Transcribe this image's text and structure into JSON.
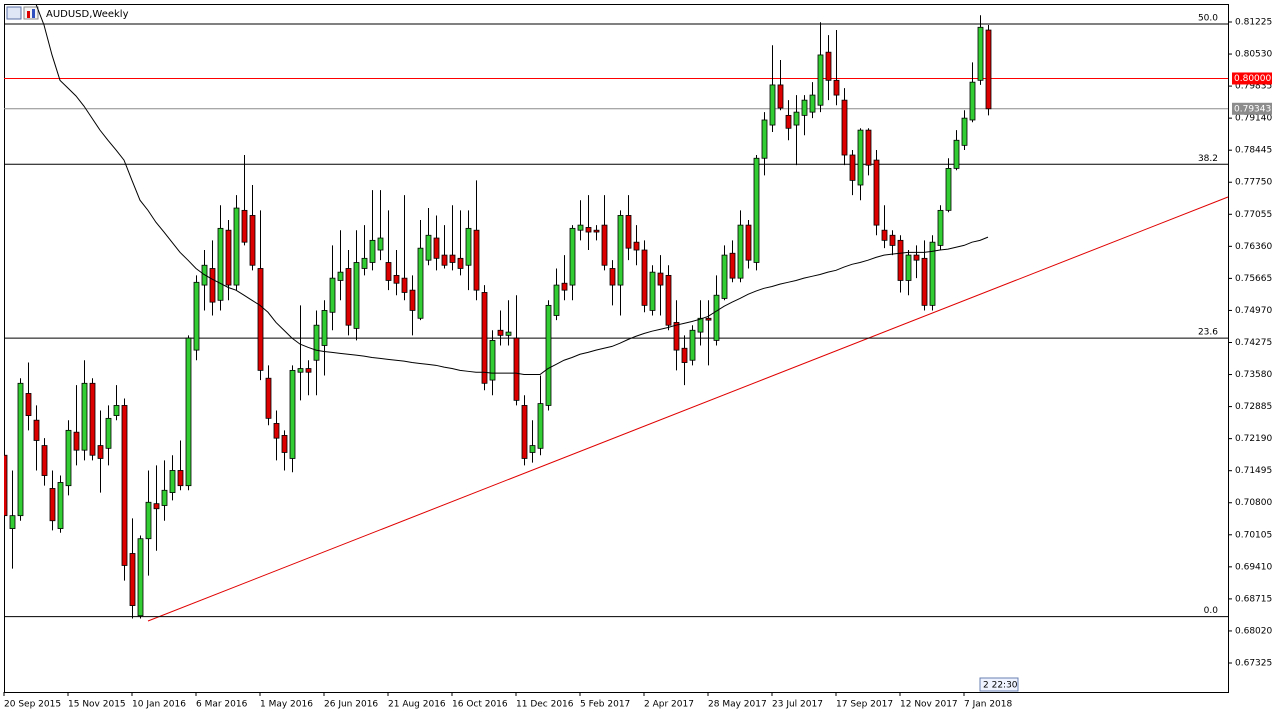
{
  "chart_data": {
    "type": "candlestick",
    "title": "AUDUSD,Weekly",
    "timer": "2 22:30",
    "up_color": "#32cd32",
    "down_color": "#dd0000",
    "categories": [
      "20 Sep 2015",
      null,
      null,
      null,
      null,
      null,
      null,
      null,
      "15 Nov 2015",
      null,
      null,
      null,
      null,
      null,
      null,
      null,
      "10 Jan 2016",
      null,
      null,
      null,
      null,
      null,
      null,
      null,
      "6 Mar 2016",
      null,
      null,
      null,
      null,
      null,
      null,
      null,
      "1 May 2016",
      null,
      null,
      null,
      null,
      null,
      null,
      null,
      "26 Jun 2016",
      null,
      null,
      null,
      null,
      null,
      null,
      null,
      "21 Aug 2016",
      null,
      null,
      null,
      null,
      null,
      null,
      null,
      "16 Oct 2016",
      null,
      null,
      null,
      null,
      null,
      null,
      null,
      "11 Dec 2016",
      null,
      null,
      null,
      null,
      null,
      null,
      null,
      "5 Feb 2017",
      null,
      null,
      null,
      null,
      null,
      null,
      null,
      "2 Apr 2017",
      null,
      null,
      null,
      null,
      null,
      null,
      null,
      "28 May 2017",
      null,
      null,
      null,
      null,
      null,
      null,
      null,
      "23 Jul 2017",
      null,
      null,
      null,
      null,
      null,
      null,
      null,
      "17 Sep 2017",
      null,
      null,
      null,
      null,
      null,
      null,
      null,
      "12 Nov 2017",
      null,
      null,
      null,
      null,
      null,
      null,
      null,
      "7 Jan 2018",
      null,
      null,
      null
    ],
    "open": [
      0.7183,
      0.7024,
      0.7052,
      0.7317,
      0.7259,
      0.7204,
      0.7111,
      0.7024,
      0.7117,
      0.7233,
      0.7194,
      0.7339,
      0.7204,
      0.7198,
      0.7269,
      0.7291,
      0.697,
      0.6835,
      0.7002,
      0.7078,
      0.7074,
      0.7102,
      0.715,
      0.7117,
      0.7411,
      0.7552,
      0.7588,
      0.7519,
      0.7671,
      0.7552,
      0.7714,
      0.7703,
      0.7588,
      0.735,
      0.7252,
      0.7226,
      0.7176,
      0.7363,
      0.7371,
      0.7389,
      0.7421,
      0.7493,
      0.7562,
      0.7588,
      0.7458,
      0.7588,
      0.7601,
      0.7628,
      0.7601,
      0.7573,
      0.7567,
      0.7541,
      0.748,
      0.7606,
      0.7654,
      0.7617,
      0.7617,
      0.761,
      0.7595,
      0.7671,
      0.7536,
      0.7346,
      0.7454,
      0.7443,
      0.7437,
      0.7291,
      0.7189,
      0.7198,
      0.7291,
      0.7486,
      0.7556,
      0.7552,
      0.7671,
      0.7677,
      0.7671,
      0.7682,
      0.7588,
      0.7552,
      0.7703,
      0.7645,
      0.7628,
      0.7497,
      0.7578,
      0.7573,
      0.7471,
      0.7415,
      0.7389,
      0.745,
      0.748,
      0.7432,
      0.7523,
      0.7621,
      0.7567,
      0.7682,
      0.7601,
      0.7827,
      0.7899,
      0.7986,
      0.792,
      0.7899,
      0.792,
      0.7927,
      0.7942,
      0.8057,
      0.7996,
      0.7953,
      0.7834,
      0.7769,
      0.7888,
      0.7823,
      0.7671,
      0.766,
      0.7649,
      0.7562,
      0.7617,
      0.761,
      0.7508,
      0.7638,
      0.7714,
      0.7805,
      0.7855,
      0.791,
      0.7996,
      0.8105
    ],
    "high": [
      0.719,
      0.715,
      0.735,
      0.7384,
      0.7291,
      0.722,
      0.715,
      0.7139,
      0.7259,
      0.7335,
      0.7389,
      0.735,
      0.728,
      0.7291,
      0.7335,
      0.7306,
      0.7046,
      0.7009,
      0.715,
      0.7161,
      0.7172,
      0.7183,
      0.7215,
      0.7443,
      0.7573,
      0.7628,
      0.7649,
      0.7725,
      0.7693,
      0.7747,
      0.7834,
      0.7769,
      0.7714,
      0.7378,
      0.728,
      0.7237,
      0.7378,
      0.7508,
      0.7389,
      0.7497,
      0.7519,
      0.7638,
      0.7671,
      0.7628,
      0.7671,
      0.7682,
      0.7758,
      0.7758,
      0.7714,
      0.7628,
      0.7747,
      0.7573,
      0.7693,
      0.7719,
      0.7703,
      0.7682,
      0.7725,
      0.7714,
      0.7714,
      0.7779,
      0.7552,
      0.7454,
      0.7497,
      0.7519,
      0.753,
      0.7313,
      0.7259,
      0.7356,
      0.7519,
      0.7588,
      0.7617,
      0.7682,
      0.7736,
      0.7747,
      0.7682,
      0.7747,
      0.7606,
      0.7714,
      0.7747,
      0.7682,
      0.7649,
      0.7595,
      0.7617,
      0.7595,
      0.7519,
      0.7443,
      0.7465,
      0.7519,
      0.7519,
      0.7573,
      0.7638,
      0.7649,
      0.7714,
      0.7693,
      0.7834,
      0.7927,
      0.8072,
      0.804,
      0.7953,
      0.7964,
      0.7964,
      0.7992,
      0.8122,
      0.8094,
      0.8105,
      0.7979,
      0.7845,
      0.7892,
      0.7892,
      0.7845,
      0.7725,
      0.7671,
      0.766,
      0.7628,
      0.7638,
      0.7649,
      0.766,
      0.7725,
      0.7827,
      0.7888,
      0.7931,
      0.8035,
      0.8137,
      0.8116
    ],
    "low": [
      0.6937,
      0.6937,
      0.7041,
      0.7237,
      0.715,
      0.7117,
      0.702,
      0.7015,
      0.7096,
      0.7161,
      0.7172,
      0.7172,
      0.7102,
      0.7161,
      0.7259,
      0.6911,
      0.6829,
      0.6829,
      0.6922,
      0.6976,
      0.7041,
      0.7085,
      0.7107,
      0.7107,
      0.7389,
      0.7497,
      0.7486,
      0.7497,
      0.7519,
      0.7541,
      0.7638,
      0.7584,
      0.7346,
      0.7248,
      0.7172,
      0.715,
      0.7146,
      0.7302,
      0.7313,
      0.7313,
      0.7356,
      0.7454,
      0.7519,
      0.7443,
      0.7432,
      0.7573,
      0.7584,
      0.7606,
      0.7541,
      0.753,
      0.7519,
      0.7443,
      0.7476,
      0.7595,
      0.7584,
      0.7588,
      0.7584,
      0.7573,
      0.7541,
      0.7519,
      0.7324,
      0.7313,
      0.7421,
      0.7421,
      0.7291,
      0.7161,
      0.7167,
      0.7183,
      0.728,
      0.7476,
      0.7519,
      0.7519,
      0.7649,
      0.7628,
      0.7649,
      0.7584,
      0.7508,
      0.7486,
      0.7606,
      0.7595,
      0.7493,
      0.7486,
      0.7486,
      0.7454,
      0.7367,
      0.7335,
      0.7378,
      0.7421,
      0.7378,
      0.7421,
      0.7519,
      0.7558,
      0.7558,
      0.7588,
      0.7584,
      0.779,
      0.7884,
      0.7931,
      0.7866,
      0.7812,
      0.7877,
      0.7914,
      0.7927,
      0.7953,
      0.7942,
      0.7812,
      0.7747,
      0.7736,
      0.779,
      0.766,
      0.7632,
      0.7617,
      0.7536,
      0.753,
      0.7567,
      0.7497,
      0.7497,
      0.7628,
      0.771,
      0.7801,
      0.7845,
      0.7905,
      0.7986,
      0.792
    ],
    "close": [
      0.7052,
      0.7052,
      0.7339,
      0.7269,
      0.7215,
      0.7139,
      0.7041,
      0.7124,
      0.7237,
      0.7194,
      0.7339,
      0.7183,
      0.7176,
      0.7263,
      0.7291,
      0.6944,
      0.6857,
      0.7002,
      0.7081,
      0.7067,
      0.7107,
      0.715,
      0.7117,
      0.7437,
      0.7558,
      0.7595,
      0.7515,
      0.7675,
      0.7552,
      0.7719,
      0.7645,
      0.7595,
      0.7367,
      0.7263,
      0.722,
      0.7189,
      0.7367,
      0.7371,
      0.7363,
      0.7465,
      0.7497,
      0.7567,
      0.758,
      0.7465,
      0.7601,
      0.761,
      0.7649,
      0.7654,
      0.7562,
      0.7556,
      0.7536,
      0.7497,
      0.7632,
      0.766,
      0.761,
      0.7595,
      0.7601,
      0.7588,
      0.7675,
      0.7541,
      0.7339,
      0.7432,
      0.7443,
      0.745,
      0.7302,
      0.7176,
      0.7204,
      0.7295,
      0.7508,
      0.7552,
      0.7541,
      0.7675,
      0.7682,
      0.7667,
      0.7667,
      0.7595,
      0.7552,
      0.7703,
      0.7632,
      0.7628,
      0.7508,
      0.758,
      0.7552,
      0.7465,
      0.7411,
      0.7384,
      0.7454,
      0.748,
      0.7476,
      0.753,
      0.7617,
      0.7567,
      0.7682,
      0.7606,
      0.7827,
      0.791,
      0.7986,
      0.7936,
      0.7892,
      0.7927,
      0.7953,
      0.7964,
      0.8051,
      0.7996,
      0.7964,
      0.7834,
      0.7779,
      0.7888,
      0.7812,
      0.7682,
      0.7649,
      0.7638,
      0.7562,
      0.7617,
      0.7606,
      0.7508,
      0.7645,
      0.7714,
      0.7805,
      0.7866,
      0.7914,
      0.7992,
      0.8111,
      0.79343
    ],
    "ma": {
      "color": "#000000",
      "values": [
        null,
        null,
        null,
        null,
        0.8161,
        0.8116,
        0.8051,
        0.7996,
        0.7979,
        0.7962,
        0.794,
        0.7914,
        0.7888,
        0.7866,
        0.7845,
        0.7823,
        0.7779,
        0.7736,
        0.7714,
        0.7688,
        0.7667,
        0.7645,
        0.7623,
        0.7606,
        0.7588,
        0.7575,
        0.7565,
        0.7556,
        0.7547,
        0.7541,
        0.753,
        0.7519,
        0.7508,
        0.7493,
        0.7471,
        0.7454,
        0.7437,
        0.7424,
        0.7417,
        0.7411,
        0.7408,
        0.7406,
        0.7404,
        0.7402,
        0.74,
        0.7398,
        0.7395,
        0.7393,
        0.7391,
        0.7389,
        0.7387,
        0.7384,
        0.7382,
        0.738,
        0.7378,
        0.7374,
        0.7371,
        0.7367,
        0.7365,
        0.7363,
        0.7363,
        0.7361,
        0.7361,
        0.7361,
        0.7361,
        0.7358,
        0.7358,
        0.7358,
        0.7371,
        0.738,
        0.7389,
        0.7395,
        0.7402,
        0.7406,
        0.7411,
        0.7415,
        0.7419,
        0.7426,
        0.7434,
        0.7441,
        0.7447,
        0.7452,
        0.7456,
        0.746,
        0.7465,
        0.7469,
        0.7473,
        0.7478,
        0.7484,
        0.7495,
        0.7506,
        0.7515,
        0.7523,
        0.7532,
        0.7539,
        0.7545,
        0.7549,
        0.7554,
        0.7558,
        0.7562,
        0.7567,
        0.7571,
        0.7575,
        0.758,
        0.7584,
        0.7591,
        0.7597,
        0.7601,
        0.7606,
        0.7612,
        0.7617,
        0.7619,
        0.7621,
        0.7623,
        0.7623,
        0.7623,
        0.7625,
        0.7628,
        0.763,
        0.7634,
        0.7638,
        0.7645,
        0.7649,
        0.7656
      ]
    },
    "levels": [
      {
        "value": 0.8118,
        "label": "50.0"
      },
      {
        "value": 0.7814,
        "label": "38.2"
      },
      {
        "value": 0.7437,
        "label": "23.6"
      },
      {
        "value": 0.6833,
        "label": "0.0"
      }
    ],
    "price_lines": [
      {
        "value": 0.8,
        "label": "0.80000",
        "color": "#ff0000"
      },
      {
        "value": 0.79343,
        "label": "0.79343",
        "color": "#8c8c8c"
      }
    ],
    "ylim": [
      0.66696,
      0.81615
    ],
    "yticks": [
      0.81225,
      {
        "value": 0.8053,
        "label": "0.80530"
      },
      0.79835,
      {
        "value": 0.7914,
        "label": "0.79140"
      },
      0.78445,
      {
        "value": 0.7775,
        "label": "0.77750"
      },
      0.77055,
      {
        "value": 0.7636,
        "label": "0.76360"
      },
      0.75665,
      {
        "value": 0.7497,
        "label": "0.74970"
      },
      0.74275,
      {
        "value": 0.7358,
        "label": "0.73580"
      },
      0.72885,
      {
        "value": 0.7219,
        "label": "0.72190"
      },
      0.71495,
      {
        "value": 0.708,
        "label": "0.70800"
      },
      0.70105,
      {
        "value": 0.6941,
        "label": "0.69410"
      },
      0.68715,
      {
        "value": 0.6802,
        "label": "0.68020"
      },
      0.67325
    ]
  }
}
